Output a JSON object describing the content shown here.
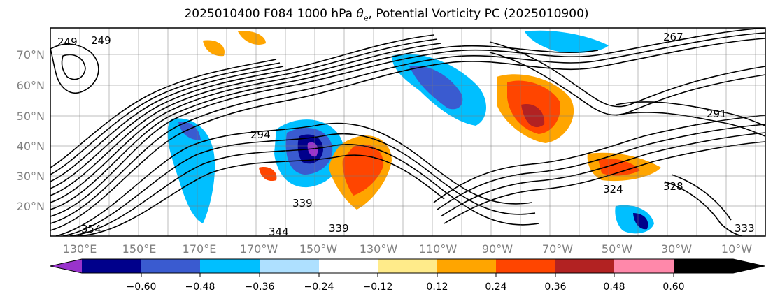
{
  "title_prefix": "2025010400 F084 1000 hPa ",
  "title_symbol": "θ",
  "title_subscript": "e",
  "title_suffix": ", Potential Vorticity PC (2025010900)",
  "lat_labels": [
    "70°N",
    "60°N",
    "50°N",
    "40°N",
    "30°N",
    "20°N"
  ],
  "lon_labels": [
    "130°E",
    "150°E",
    "170°E",
    "170°W",
    "150°W",
    "130°W",
    "110°W",
    "90°W",
    "70°W",
    "50°W",
    "30°W",
    "10°W"
  ],
  "contour_labels": [
    "249",
    "249",
    "267",
    "291",
    "294",
    "354",
    "344",
    "339",
    "339",
    "324",
    "328",
    "333"
  ],
  "colorbar": {
    "ticks": [
      "−0.60",
      "−0.48",
      "−0.36",
      "−0.24",
      "−0.12",
      "0.12",
      "0.24",
      "0.36",
      "0.48",
      "0.60"
    ],
    "colors": [
      "#9933cc",
      "#00008b",
      "#3a5bd0",
      "#00bfff",
      "#aee0ff",
      "#ffffff",
      "#ffeb8a",
      "#ffa500",
      "#ff4500",
      "#b22222",
      "#ff88aa"
    ]
  }
}
